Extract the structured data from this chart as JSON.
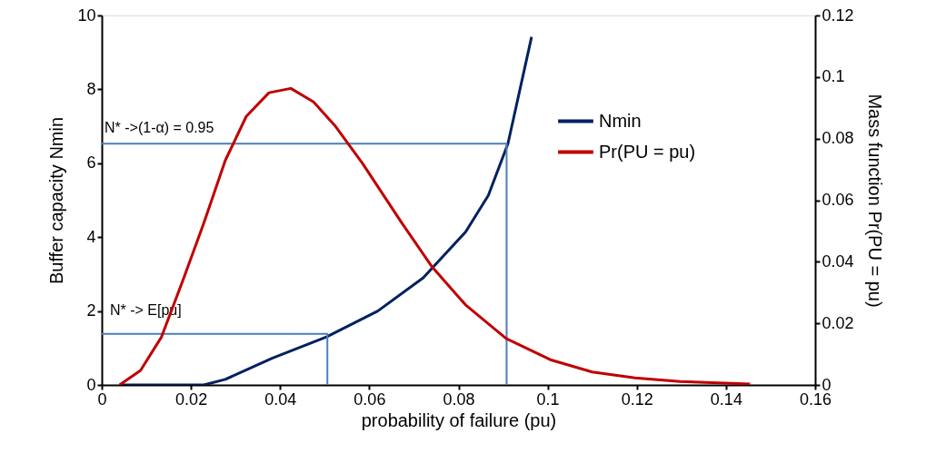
{
  "chart_data": {
    "type": "line",
    "xlabel": "probability of failure (pu)",
    "ylabel": "Buffer capacity Nmin",
    "y2label": "Mass function Pr(PU = pu)",
    "xlim": [
      0,
      0.16
    ],
    "xticks": [
      0,
      0.02,
      0.04,
      0.06,
      0.08,
      0.1,
      0.12,
      0.14,
      0.16
    ],
    "ylim": [
      0,
      10
    ],
    "yticks": [
      0,
      2,
      4,
      6,
      8,
      10
    ],
    "y2lim": [
      0,
      0.12
    ],
    "y2ticks": [
      0,
      0.02,
      0.04,
      0.06,
      0.08,
      0.1,
      0.12
    ],
    "grid": false,
    "legend": "top right",
    "marker": "none",
    "line_style": "solid",
    "series": [
      {
        "name": "Nmin",
        "color": "#002060",
        "x": [
          0.004,
          0.0229,
          0.0277,
          0.0382,
          0.0504,
          0.0619,
          0.0721,
          0.0816,
          0.0867,
          0.0911,
          0.0964
        ],
        "values": [
          0,
          0,
          0.15,
          0.72,
          1.3,
          2.0,
          2.9,
          4.14,
          5.13,
          6.53,
          9.42
        ]
      },
      {
        "name": "Pr(PU = pu)",
        "color": "#c00000",
        "axis": "y2",
        "x": [
          0.004,
          0.0087,
          0.0134,
          0.0182,
          0.0229,
          0.0277,
          0.0324,
          0.0375,
          0.0424,
          0.0475,
          0.0523,
          0.0585,
          0.0673,
          0.0741,
          0.0816,
          0.0907,
          0.1006,
          0.11,
          0.1196,
          0.1297,
          0.1454
        ],
        "values": [
          0,
          0.0047,
          0.0156,
          0.034,
          0.0526,
          0.0729,
          0.0872,
          0.0949,
          0.0963,
          0.0919,
          0.0842,
          0.0719,
          0.0526,
          0.0383,
          0.026,
          0.0151,
          0.0082,
          0.0042,
          0.0023,
          0.0011,
          0.0003
        ]
      },
      {
        "color": "#4a7ebb",
        "x": [
          0,
          0.0908,
          0.0908
        ],
        "values": [
          6.53,
          6.53,
          0
        ]
      },
      {
        "color": "#4a7ebb",
        "x": [
          0,
          0.0506,
          0.0506
        ],
        "values": [
          1.38,
          1.38,
          0
        ]
      }
    ],
    "annotations": [
      "N* ->(1-α) = 0.95",
      "N* -> E[pu]"
    ]
  }
}
